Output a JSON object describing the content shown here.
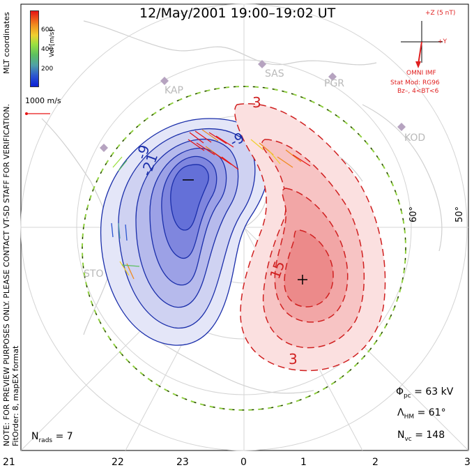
{
  "title": "12/May/2001  19:00–19:02 UT",
  "colorbar": {
    "label": "Vel [m/s]",
    "ticks": [
      "600",
      "400",
      "200"
    ],
    "colors": [
      "#e61414",
      "#f08a1e",
      "#f0d030",
      "#9be040",
      "#5cc060",
      "#4fa0a8",
      "#2b55d0",
      "#0b1fd6"
    ]
  },
  "coordinates_label": "MLT coordinates",
  "scale_vector_label": "1000 m/s",
  "note": "NOTE: FOR PREVIEW PURPOSES ONLY. PLEASE CONTACT VT-SD STAFF FOR VERIFICATION.",
  "fit_info": "FitOrder: 8, mapEX format",
  "imf": {
    "scale": "+Z (5 nT)",
    "y_label": "+Y",
    "source": "OMNI IMF",
    "model": "Stat Mod: RG96",
    "condition": "Bz–, 4<BT<6"
  },
  "stations": [
    "KAP",
    "SAS",
    "PGR",
    "KOD",
    "STO"
  ],
  "latitude_labels": [
    "60°",
    "50°"
  ],
  "mlt_labels": [
    "21",
    "22",
    "23",
    "0",
    "1",
    "2",
    "3"
  ],
  "contour_labels": {
    "neg": [
      "-21",
      "-9",
      "-9"
    ],
    "pos": [
      "15",
      "3",
      "3"
    ]
  },
  "extrema_markers": {
    "min": "–",
    "max": "+"
  },
  "stats": {
    "phi_pc_label": "Φ",
    "phi_pc_sub": "pc",
    "phi_pc_value": "= 63 kV",
    "lambda_label": "Λ",
    "lambda_sub": "HM",
    "lambda_value": "= 61°",
    "nvc_label": "N",
    "nvc_sub": "vc",
    "nvc_value": "= 148",
    "nrads_label": "N",
    "nrads_sub": "rads",
    "nrads_value": "= 7"
  },
  "colors": {
    "negative_contour": "#1a2eaa",
    "positive_contour": "#d02020",
    "negative_fill": "#5a66e0",
    "positive_fill": "#f06060",
    "boundary": "#90d040"
  }
}
